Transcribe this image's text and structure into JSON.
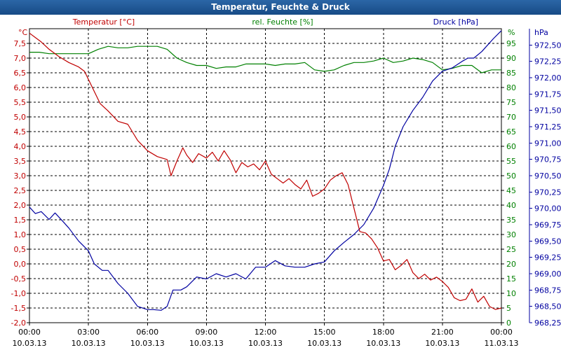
{
  "window": {
    "title": "Temperatur, Feuchte & Druck"
  },
  "chart_data": {
    "type": "line",
    "title": "Temperatur, Feuchte & Druck",
    "grid": true,
    "x": {
      "start": "10.03.13 00:00",
      "end": "11.03.13 00:00",
      "time_labels": [
        "00:00",
        "03:00",
        "06:00",
        "09:00",
        "12:00",
        "15:00",
        "18:00",
        "21:00",
        "00:00"
      ],
      "date_labels": [
        "10.03.13",
        "10.03.13",
        "10.03.13",
        "10.03.13",
        "10.03.13",
        "10.03.13",
        "10.03.13",
        "10.03.13",
        "11.03.13"
      ],
      "ticks_hours": [
        0,
        3,
        6,
        9,
        12,
        15,
        18,
        21,
        24
      ]
    },
    "axes": {
      "temperature": {
        "label": "Temperatur [°C]",
        "unit": "°C",
        "min": -2.0,
        "max": 8.0,
        "color": "#c00000",
        "tick_values": [
          -2.0,
          -1.5,
          -1.0,
          -0.5,
          0.0,
          0.5,
          1.0,
          1.5,
          2.0,
          2.5,
          3.0,
          3.5,
          4.0,
          4.5,
          5.0,
          5.5,
          6.0,
          6.5,
          7.0,
          7.5
        ],
        "tick_labels": [
          "-2,0",
          "-1,5",
          "-1,0",
          "-0,5",
          "0,0",
          "0,5",
          "1,0",
          "1,5",
          "2,0",
          "2,5",
          "3,0",
          "3,5",
          "4,0",
          "4,5",
          "5,0",
          "5,5",
          "6,0",
          "6,5",
          "7,0",
          "7,5"
        ]
      },
      "humidity": {
        "label": "rel. Feuchte [%]",
        "unit": "%",
        "min": 0,
        "max": 100,
        "color": "#008000",
        "tick_values": [
          0,
          5,
          10,
          15,
          20,
          25,
          30,
          35,
          40,
          45,
          50,
          55,
          60,
          65,
          70,
          75,
          80,
          85,
          90,
          95
        ],
        "tick_labels": [
          "0",
          "5",
          "10",
          "15",
          "20",
          "25",
          "30",
          "35",
          "40",
          "45",
          "50",
          "55",
          "60",
          "65",
          "70",
          "75",
          "80",
          "85",
          "90",
          "95"
        ]
      },
      "pressure": {
        "label": "Druck [hPa]",
        "unit": "hPa",
        "min": 968.25,
        "max": 972.75,
        "color": "#0000a0",
        "tick_values": [
          968.25,
          968.5,
          968.75,
          969.0,
          969.25,
          969.5,
          969.75,
          970.0,
          970.25,
          970.5,
          970.75,
          971.0,
          971.25,
          971.5,
          971.75,
          972.0,
          972.25,
          972.5
        ],
        "tick_labels": [
          "968,25",
          "968,50",
          "968,75",
          "969,00",
          "969,25",
          "969,50",
          "969,75",
          "970,00",
          "970,25",
          "970,50",
          "970,75",
          "971,00",
          "971,25",
          "971,50",
          "971,75",
          "972,00",
          "972,25",
          "972,50"
        ]
      }
    },
    "series": [
      {
        "name": "Temperatur [°C]",
        "axis": "temperature",
        "color": "#c00000",
        "x": [
          0,
          0.3,
          0.6,
          1.0,
          1.5,
          2.0,
          2.5,
          2.8,
          3.2,
          3.6,
          4.0,
          4.5,
          5.0,
          5.5,
          6.0,
          6.5,
          7.0,
          7.2,
          7.5,
          7.8,
          8.0,
          8.3,
          8.6,
          9.0,
          9.3,
          9.6,
          9.9,
          10.2,
          10.5,
          10.8,
          11.1,
          11.4,
          11.7,
          12.0,
          12.3,
          12.6,
          12.9,
          13.2,
          13.5,
          13.8,
          14.1,
          14.4,
          14.7,
          15.0,
          15.3,
          15.6,
          15.9,
          16.2,
          16.5,
          16.8,
          17.1,
          17.4,
          17.7,
          18.0,
          18.3,
          18.6,
          18.9,
          19.2,
          19.5,
          19.8,
          20.1,
          20.4,
          20.7,
          21.0,
          21.3,
          21.6,
          21.9,
          22.2,
          22.5,
          22.8,
          23.1,
          23.4,
          23.7,
          24.0
        ],
        "y": [
          7.85,
          7.7,
          7.55,
          7.3,
          7.05,
          6.85,
          6.7,
          6.55,
          6.0,
          5.45,
          5.2,
          4.85,
          4.75,
          4.2,
          3.85,
          3.65,
          3.55,
          3.0,
          3.5,
          3.95,
          3.7,
          3.45,
          3.75,
          3.6,
          3.8,
          3.5,
          3.85,
          3.55,
          3.1,
          3.45,
          3.3,
          3.4,
          3.2,
          3.5,
          3.05,
          2.9,
          2.75,
          2.9,
          2.7,
          2.55,
          2.85,
          2.3,
          2.4,
          2.55,
          2.85,
          3.0,
          3.1,
          2.7,
          1.9,
          1.1,
          1.05,
          0.85,
          0.55,
          0.1,
          0.15,
          -0.2,
          -0.05,
          0.15,
          -0.3,
          -0.5,
          -0.35,
          -0.55,
          -0.45,
          -0.6,
          -0.8,
          -1.15,
          -1.25,
          -1.2,
          -0.85,
          -1.3,
          -1.1,
          -1.45,
          -1.55,
          -1.5
        ]
      },
      {
        "name": "rel. Feuchte [%]",
        "axis": "humidity",
        "color": "#008000",
        "x": [
          0,
          0.5,
          1.0,
          1.5,
          2.0,
          2.5,
          3.0,
          3.5,
          4.0,
          4.5,
          5.0,
          5.5,
          6.0,
          6.5,
          7.0,
          7.5,
          8.0,
          8.5,
          9.0,
          9.5,
          10.0,
          10.5,
          11.0,
          11.5,
          12.0,
          12.5,
          13.0,
          13.5,
          14.0,
          14.5,
          15.0,
          15.5,
          16.0,
          16.5,
          17.0,
          17.5,
          18.0,
          18.5,
          19.0,
          19.5,
          20.0,
          20.5,
          21.0,
          21.5,
          22.0,
          22.5,
          23.0,
          23.5,
          24.0
        ],
        "y": [
          92,
          92,
          91.5,
          91.5,
          91.5,
          91.5,
          91.5,
          93,
          94,
          93.5,
          93.5,
          94,
          94,
          94,
          93,
          90,
          88.5,
          87.5,
          87.5,
          86.5,
          87,
          87,
          88,
          88,
          88,
          87.5,
          88,
          88,
          88.5,
          86,
          85.5,
          86,
          87.5,
          88.5,
          88.5,
          89,
          90,
          88.5,
          89,
          90,
          89.5,
          88.5,
          86,
          86.5,
          87.5,
          87.5,
          85,
          86,
          86
        ]
      },
      {
        "name": "Druck [hPa]",
        "axis": "pressure",
        "color": "#0000a0",
        "x": [
          0,
          0.3,
          0.6,
          1.0,
          1.3,
          1.7,
          2.0,
          2.5,
          3.0,
          3.3,
          3.7,
          4.0,
          4.5,
          5.0,
          5.5,
          6.0,
          6.3,
          6.7,
          7.0,
          7.3,
          7.7,
          8.0,
          8.5,
          9.0,
          9.5,
          10.0,
          10.5,
          11.0,
          11.5,
          12.0,
          12.5,
          13.0,
          13.5,
          14.0,
          14.5,
          15.0,
          15.5,
          16.0,
          16.5,
          17.0,
          17.5,
          18.0,
          18.3,
          18.6,
          19.0,
          19.5,
          20.0,
          20.5,
          21.0,
          21.5,
          22.0,
          22.3,
          22.6,
          23.0,
          23.3,
          23.6,
          24.0
        ],
        "y": [
          970.02,
          969.92,
          969.95,
          969.83,
          969.93,
          969.8,
          969.7,
          969.5,
          969.35,
          969.15,
          969.05,
          969.05,
          968.85,
          968.7,
          968.5,
          968.45,
          968.45,
          968.44,
          968.5,
          968.75,
          968.75,
          968.8,
          968.95,
          968.92,
          969.0,
          968.95,
          969.0,
          968.92,
          969.1,
          969.1,
          969.2,
          969.12,
          969.1,
          969.1,
          969.15,
          969.18,
          969.35,
          969.48,
          969.6,
          969.75,
          970.0,
          970.35,
          970.6,
          970.95,
          971.25,
          971.5,
          971.7,
          971.95,
          972.1,
          972.15,
          972.25,
          972.3,
          972.3,
          972.4,
          972.5,
          972.6,
          972.72
        ]
      }
    ]
  }
}
